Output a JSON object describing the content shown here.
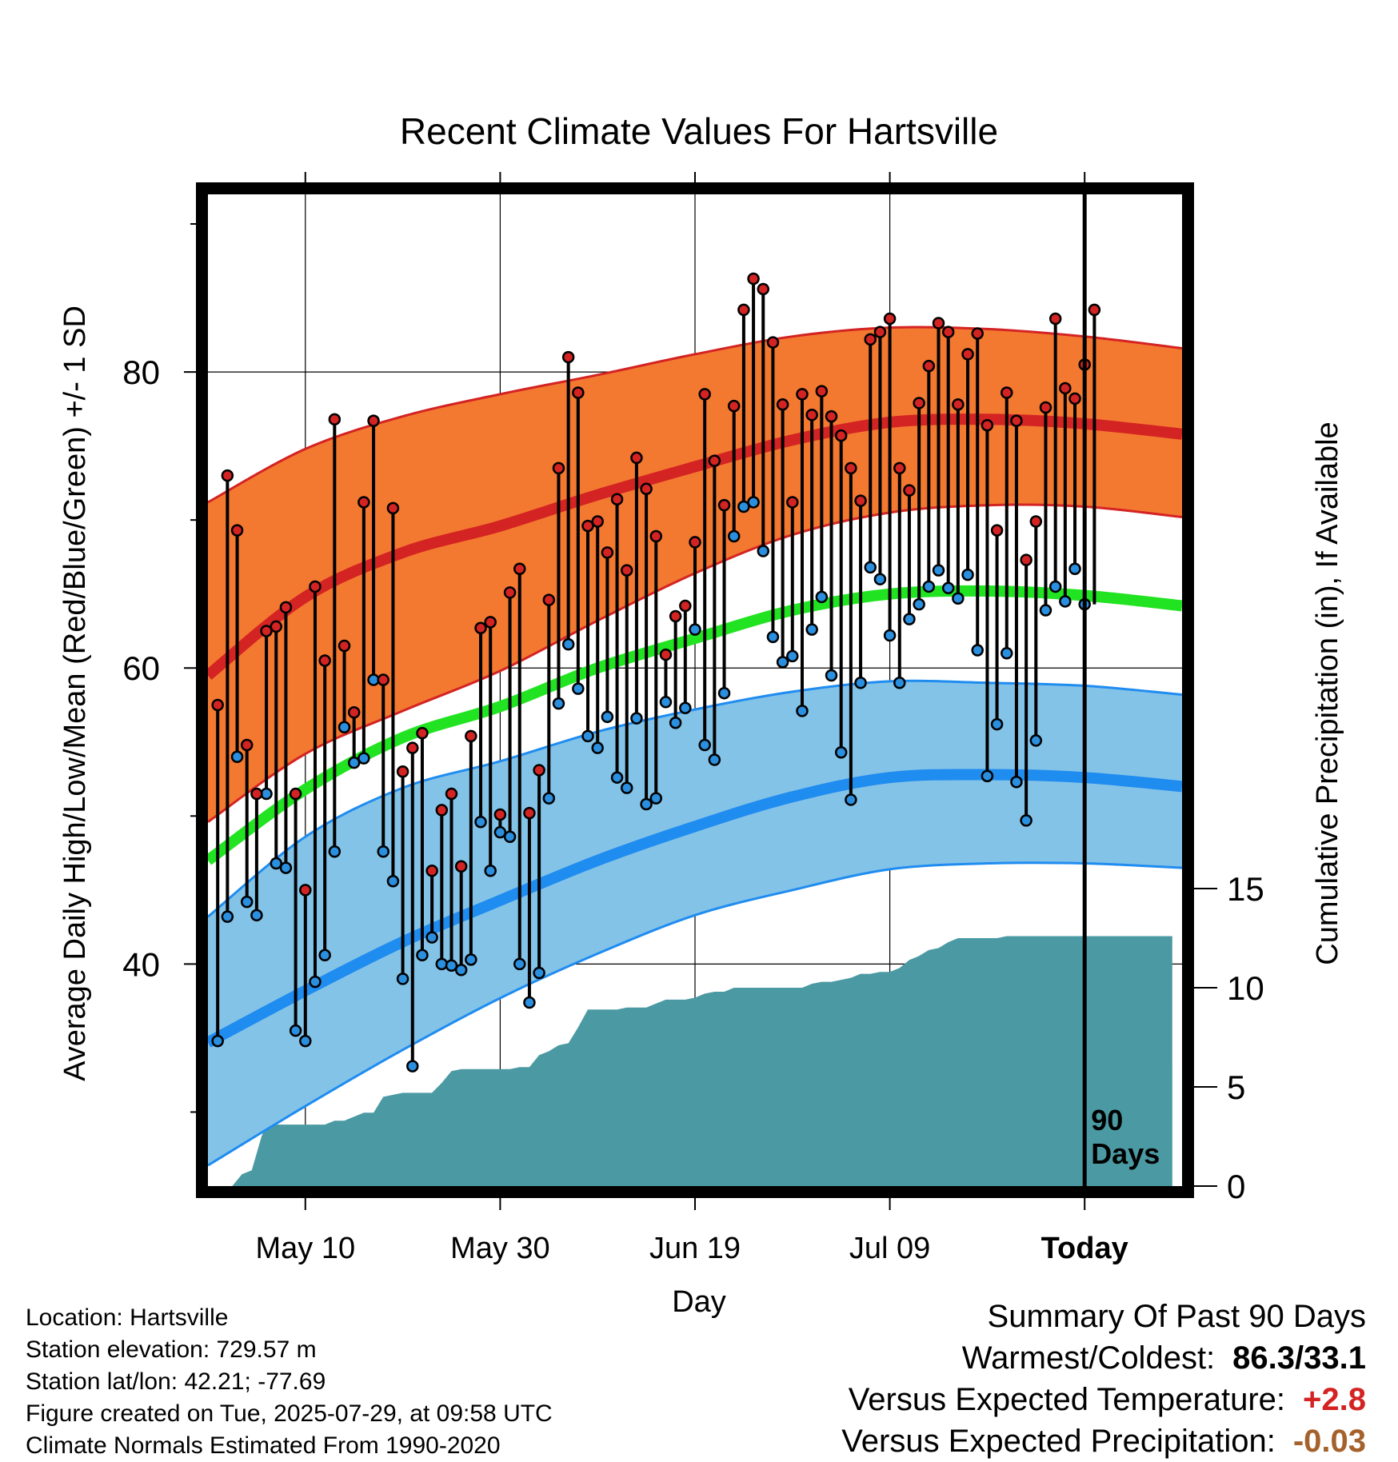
{
  "chart_data": {
    "type": "line",
    "title": "Recent Climate Values For Hartsville",
    "xlabel": "Day",
    "ylabel": "Average Daily High/Low/Mean (Red/Blue/Green) +/- 1 SD",
    "y2label": "Cumulative Precipitation (in), If Available",
    "x_ticks": [
      {
        "label": "May 10",
        "day": 10,
        "bold": false
      },
      {
        "label": "May 30",
        "day": 30,
        "bold": false
      },
      {
        "label": "Jun 19",
        "day": 50,
        "bold": false
      },
      {
        "label": "Jul 09",
        "day": 70,
        "bold": false
      },
      {
        "label": "Today",
        "day": 90,
        "bold": true
      }
    ],
    "xlim": [
      0,
      100
    ],
    "ylim": [
      25,
      92
    ],
    "y_ticks": [
      40,
      60,
      80
    ],
    "y_minor_ticks": [
      30,
      50,
      70,
      90
    ],
    "y2lim": [
      0,
      50
    ],
    "y2_ticks": [
      0,
      5,
      10,
      15
    ],
    "grid": true,
    "today_marker": {
      "day": 90,
      "label_line1": "90",
      "label_line2": "Days"
    },
    "colors": {
      "high_band": "#f37830",
      "high_edge": "#d42323",
      "high_mean": "#d42323",
      "low_band": "#84c3e8",
      "low_edge": "#1f8cf0",
      "low_mean": "#1f8cf0",
      "mean_line": "#22e322",
      "precip": "#4b9aa3",
      "high_dot": "#d42323",
      "low_dot": "#2a8fdf"
    },
    "normals": {
      "days": [
        0,
        10,
        20,
        30,
        40,
        50,
        60,
        70,
        80,
        90,
        100
      ],
      "high_upper": [
        71.2,
        74.8,
        77.0,
        78.5,
        79.8,
        81.2,
        82.4,
        83.0,
        82.9,
        82.4,
        81.6
      ],
      "high_mean": [
        59.5,
        64.8,
        67.8,
        69.6,
        71.7,
        73.6,
        75.4,
        76.6,
        76.8,
        76.5,
        75.8
      ],
      "high_lower": [
        49.6,
        54.2,
        57.1,
        59.8,
        63.2,
        66.4,
        69.0,
        70.5,
        71.0,
        70.9,
        70.2
      ],
      "mean": [
        47.0,
        51.8,
        55.3,
        57.4,
        60.0,
        62.0,
        63.9,
        65.0,
        65.2,
        64.9,
        64.2
      ],
      "low_upper": [
        43.2,
        48.6,
        51.9,
        53.7,
        55.7,
        57.2,
        58.4,
        59.1,
        59.0,
        58.8,
        58.2
      ],
      "low_mean": [
        34.7,
        38.2,
        41.5,
        44.3,
        47.0,
        49.3,
        51.3,
        52.6,
        52.8,
        52.6,
        52.0
      ],
      "low_lower": [
        26.4,
        30.4,
        34.2,
        37.7,
        40.7,
        43.3,
        45.0,
        46.4,
        46.8,
        46.8,
        46.5
      ]
    },
    "daily": {
      "days": [
        1,
        2,
        3,
        4,
        5,
        6,
        7,
        8,
        9,
        10,
        11,
        12,
        13,
        14,
        15,
        16,
        17,
        18,
        19,
        20,
        21,
        22,
        23,
        24,
        25,
        26,
        27,
        28,
        29,
        30,
        31,
        32,
        33,
        34,
        35,
        36,
        37,
        38,
        39,
        40,
        41,
        42,
        43,
        44,
        45,
        46,
        47,
        48,
        49,
        50,
        51,
        52,
        53,
        54,
        55,
        56,
        57,
        58,
        59,
        60,
        61,
        62,
        63,
        64,
        65,
        66,
        67,
        68,
        69,
        70,
        71,
        72,
        73,
        74,
        75,
        76,
        77,
        78,
        79,
        80,
        81,
        82,
        83,
        84,
        85,
        86,
        87,
        88,
        89,
        90
      ],
      "high": [
        57.5,
        73.0,
        69.3,
        54.8,
        51.5,
        62.5,
        62.8,
        64.1,
        51.5,
        45.0,
        65.5,
        60.5,
        76.8,
        61.5,
        57.0,
        71.2,
        76.7,
        59.2,
        70.8,
        53.0,
        54.6,
        55.6,
        46.3,
        50.4,
        51.5,
        46.6,
        55.4,
        62.7,
        63.1,
        50.1,
        65.1,
        66.7,
        50.2,
        53.1,
        64.6,
        73.5,
        81.0,
        78.6,
        69.6,
        69.9,
        67.8,
        71.4,
        66.6,
        74.2,
        72.1,
        68.9,
        60.9,
        63.5,
        64.2,
        68.5,
        78.5,
        74.0,
        71.0,
        77.7,
        84.2,
        86.3,
        85.6,
        82.0,
        77.8,
        71.2,
        78.5,
        77.1,
        78.7,
        77.0,
        75.7,
        73.5,
        71.3,
        82.2,
        82.7,
        83.6,
        73.5,
        72.0,
        77.9,
        80.4,
        83.3,
        82.7,
        77.8,
        81.2,
        82.6,
        76.4,
        69.3,
        78.6,
        76.7,
        67.3,
        69.9,
        77.6,
        83.6,
        78.9,
        78.2,
        80.5
      ],
      "low": [
        34.8,
        43.2,
        54.0,
        44.2,
        43.3,
        51.5,
        46.8,
        46.5,
        35.5,
        34.8,
        38.8,
        40.6,
        47.6,
        56.0,
        53.6,
        53.9,
        59.2,
        47.6,
        45.6,
        39.0,
        33.1,
        40.6,
        41.8,
        40.0,
        39.9,
        39.6,
        40.3,
        49.6,
        46.3,
        48.9,
        48.6,
        40.0,
        37.4,
        39.4,
        51.2,
        57.6,
        61.6,
        58.6,
        55.4,
        54.6,
        56.7,
        52.6,
        51.9,
        56.6,
        50.8,
        51.2,
        57.7,
        56.3,
        57.3,
        62.6,
        54.8,
        53.8,
        58.3,
        68.9,
        70.9,
        71.2,
        67.9,
        62.1,
        60.4,
        60.8,
        57.1,
        62.6,
        64.8,
        59.5,
        54.3,
        51.1,
        59.0,
        66.8,
        66.0,
        62.2,
        59.0,
        63.3,
        64.3,
        65.5,
        66.6,
        65.4,
        64.7,
        66.3,
        61.2,
        52.7,
        56.2,
        61.0,
        52.3,
        49.7,
        55.1,
        63.9,
        65.5,
        64.5,
        66.7,
        64.3
      ],
      "extra_high_day": 91,
      "extra_high": 84.2
    },
    "precip": {
      "days": [
        0,
        2.5,
        3.5,
        4.5,
        5.5,
        6,
        7,
        8,
        9,
        10,
        12,
        13,
        14,
        15,
        16,
        17,
        18,
        19,
        20,
        21,
        22,
        23,
        24,
        25,
        26,
        27,
        28,
        29,
        30,
        31,
        32,
        33,
        34,
        35,
        36,
        37,
        38,
        39,
        40,
        41,
        42,
        43,
        44,
        45,
        46,
        47,
        48,
        49,
        50,
        51,
        52,
        53,
        54,
        55,
        56,
        57,
        58,
        59,
        60,
        61,
        62,
        63,
        64,
        65,
        66,
        67,
        68,
        69,
        70,
        71,
        72,
        73,
        74,
        75,
        76,
        77,
        78,
        79,
        80,
        81,
        82,
        83,
        84,
        85,
        86,
        87,
        88,
        89,
        90,
        91,
        92,
        99
      ],
      "values": [
        0,
        0,
        0.6,
        0.8,
        2.5,
        3.1,
        3.1,
        3.1,
        3.1,
        3.1,
        3.1,
        3.3,
        3.3,
        3.5,
        3.7,
        3.7,
        4.5,
        4.6,
        4.7,
        4.7,
        4.7,
        4.7,
        5.2,
        5.8,
        5.9,
        5.9,
        5.9,
        5.9,
        5.9,
        5.9,
        6.0,
        6.0,
        6.6,
        6.8,
        7.1,
        7.2,
        8.0,
        8.9,
        8.9,
        8.9,
        8.9,
        9.0,
        9.0,
        9.0,
        9.2,
        9.4,
        9.4,
        9.4,
        9.5,
        9.7,
        9.8,
        9.8,
        10.0,
        10.0,
        10.0,
        10.0,
        10.0,
        10.0,
        10.0,
        10.0,
        10.2,
        10.3,
        10.3,
        10.4,
        10.5,
        10.7,
        10.7,
        10.8,
        10.8,
        11.0,
        11.4,
        11.6,
        11.9,
        12.0,
        12.3,
        12.5,
        12.5,
        12.5,
        12.5,
        12.5,
        12.6,
        12.6,
        12.6,
        12.6,
        12.6,
        12.6,
        12.6,
        12.6,
        12.6,
        12.6,
        12.6,
        12.6
      ]
    }
  },
  "info": {
    "location": "Location: Hartsville",
    "elevation": "Station elevation: 729.57 m",
    "latlon": "Station lat/lon: 42.21; -77.69",
    "created": "Figure created on Tue, 2025-07-29, at 09:58 UTC",
    "normals": "Climate Normals Estimated From 1990-2020"
  },
  "summary": {
    "title": "Summary Of Past 90 Days",
    "warmest_coldest_label": "Warmest/Coldest:",
    "warmest_coldest_value": "86.3/33.1",
    "temp_label": "Versus Expected Temperature:",
    "temp_value": "+2.8",
    "temp_color": "#d42323",
    "precip_label": "Versus Expected Precipitation:",
    "precip_value": "-0.03",
    "precip_color": "#a5612b"
  }
}
